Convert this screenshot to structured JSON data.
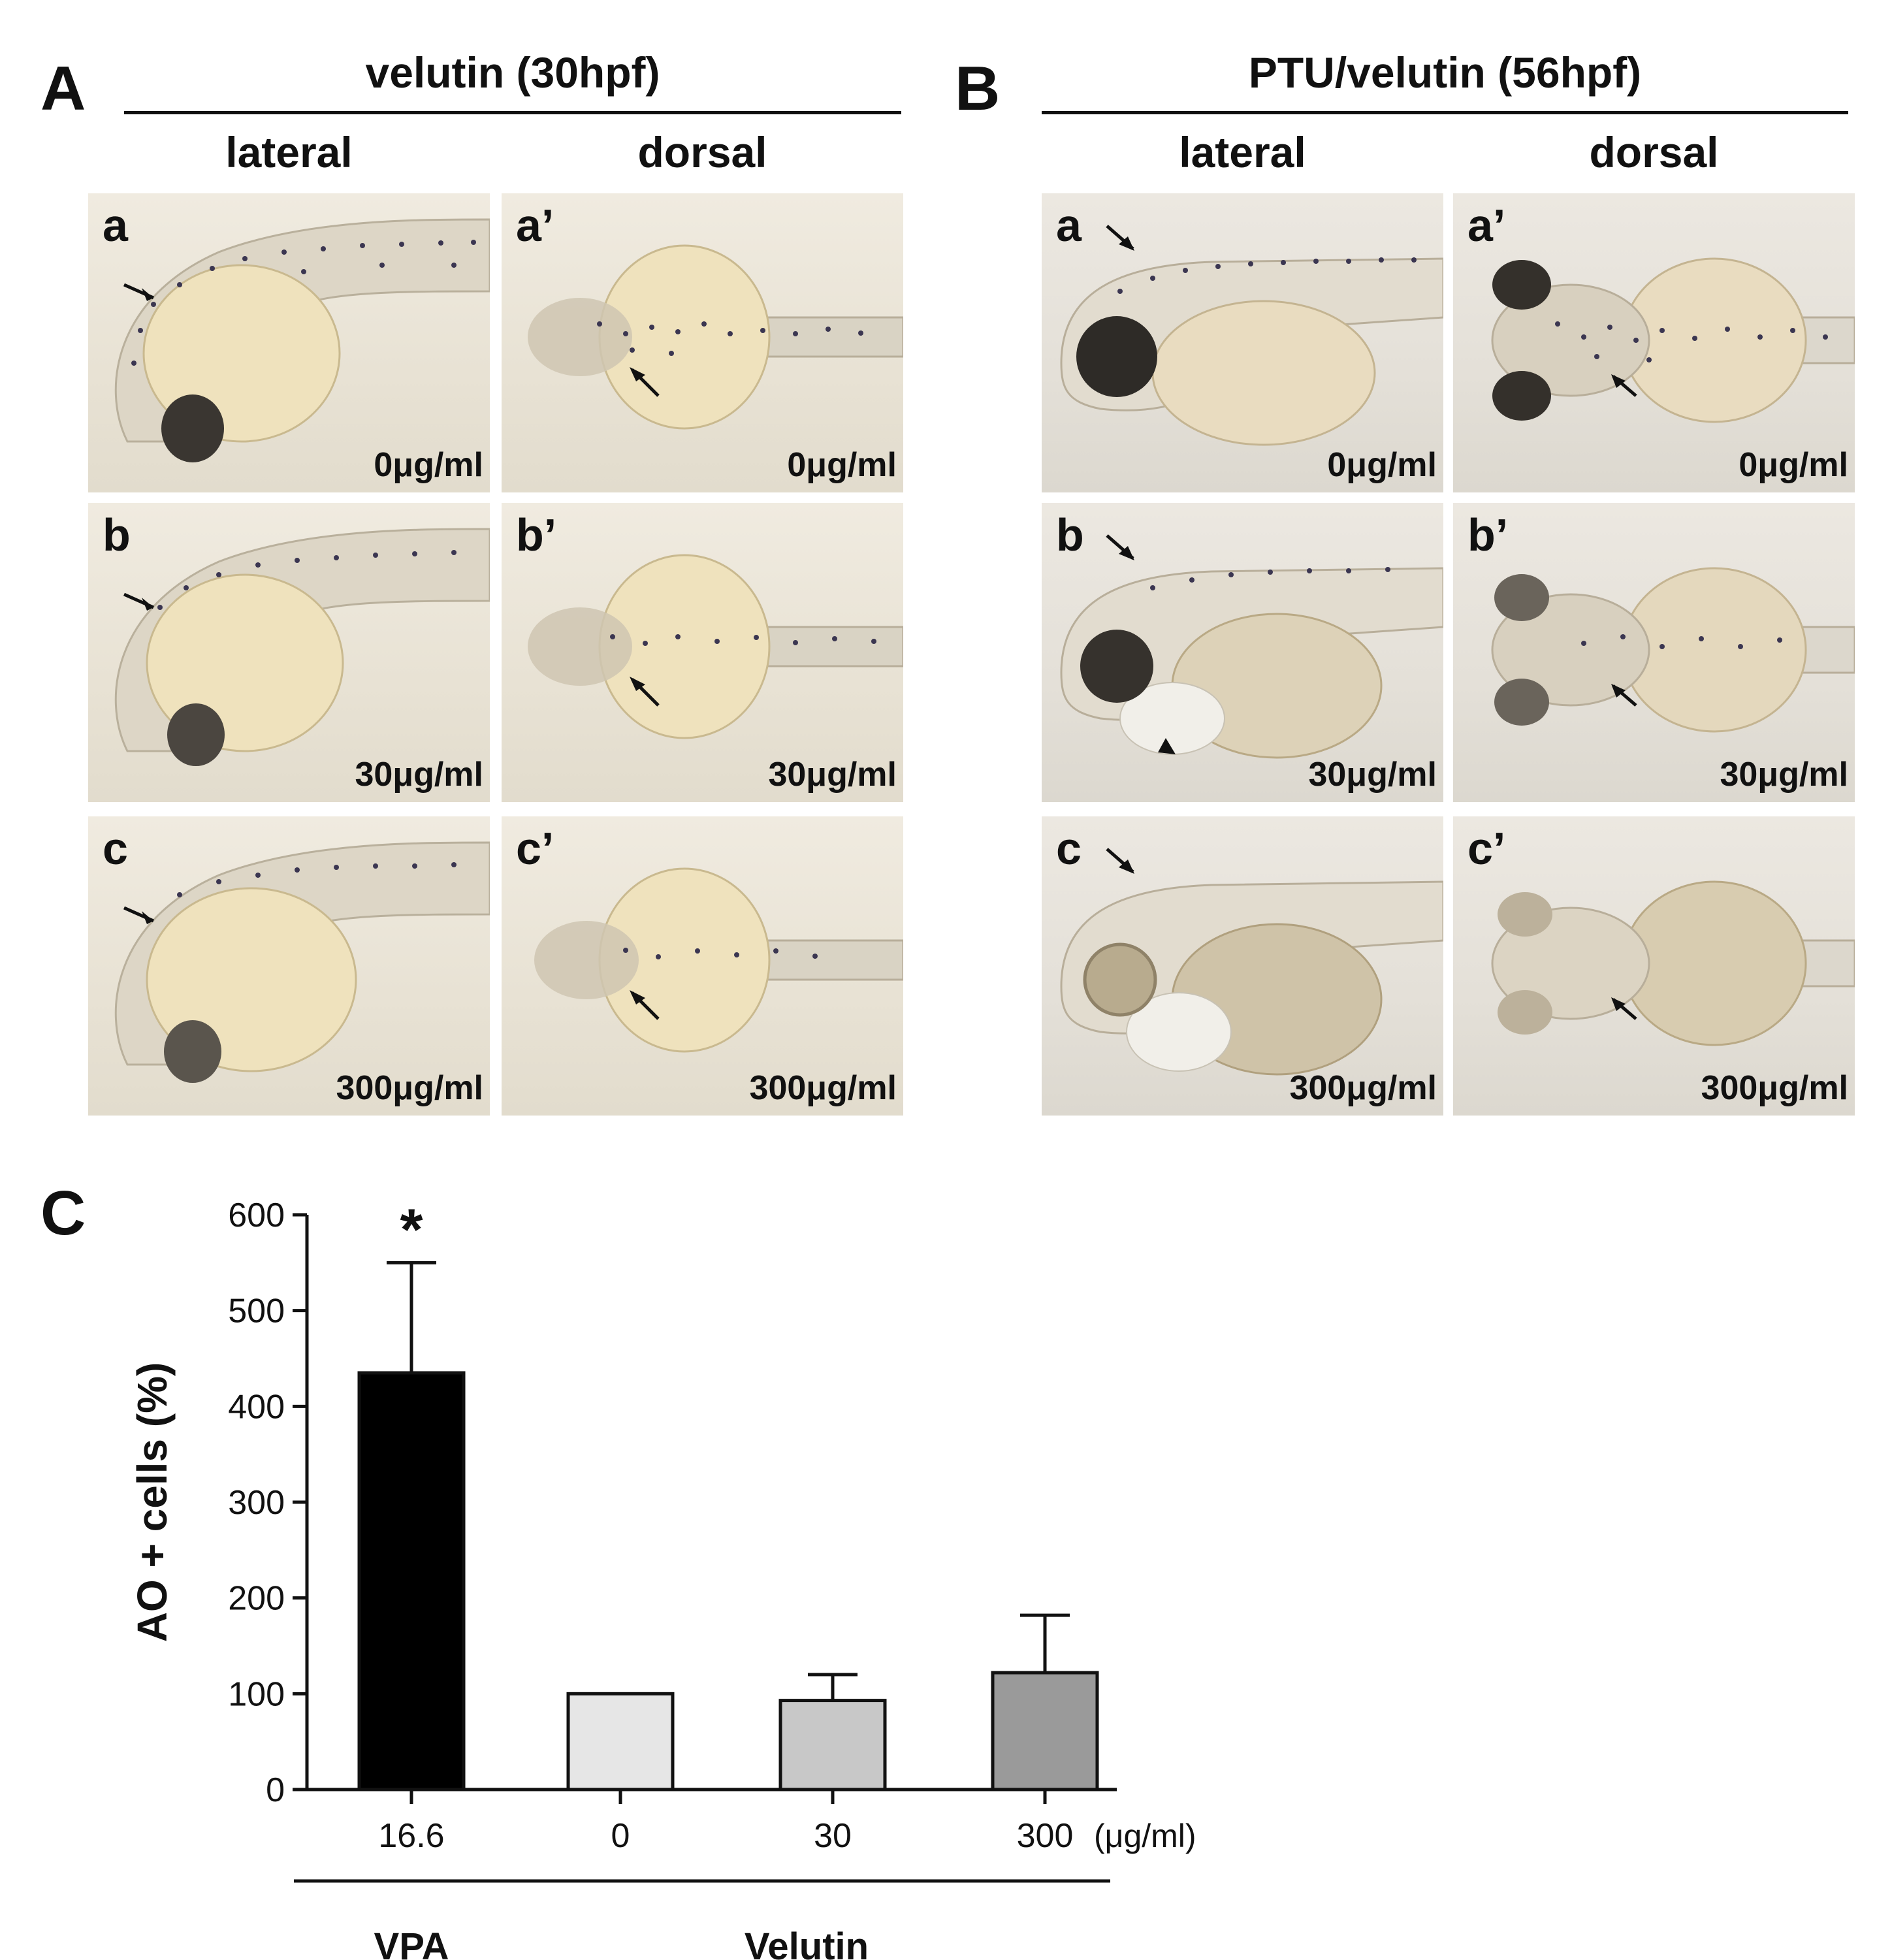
{
  "panels": {
    "A": {
      "letter": "A",
      "title": "velutin (30hpf)",
      "views": [
        "lateral",
        "dorsal"
      ],
      "images": [
        {
          "letter": "a",
          "conc": "0μg/ml"
        },
        {
          "letter": "a’",
          "conc": "0μg/ml"
        },
        {
          "letter": "b",
          "conc": "30μg/ml"
        },
        {
          "letter": "b’",
          "conc": "30μg/ml"
        },
        {
          "letter": "c",
          "conc": "300μg/ml"
        },
        {
          "letter": "c’",
          "conc": "300μg/ml"
        }
      ]
    },
    "B": {
      "letter": "B",
      "title": "PTU/velutin (56hpf)",
      "views": [
        "lateral",
        "dorsal"
      ],
      "images": [
        {
          "letter": "a",
          "conc": "0μg/ml"
        },
        {
          "letter": "a’",
          "conc": "0μg/ml"
        },
        {
          "letter": "b",
          "conc": "30μg/ml"
        },
        {
          "letter": "b’",
          "conc": "30μg/ml"
        },
        {
          "letter": "c",
          "conc": "300μg/ml"
        },
        {
          "letter": "c’",
          "conc": "300μg/ml"
        }
      ]
    },
    "C": {
      "letter": "C"
    }
  },
  "chart_data": {
    "type": "bar",
    "ylabel": "AO + cells (%)",
    "ylim": [
      0,
      600
    ],
    "yticks": [
      0,
      100,
      200,
      300,
      400,
      500,
      600
    ],
    "unit_label": "(μg/ml)",
    "categories": [
      "16.6",
      "0",
      "30",
      "300"
    ],
    "values": [
      435,
      100,
      93,
      122
    ],
    "errors": [
      115,
      0,
      27,
      60
    ],
    "bar_colors": [
      "#000000",
      "#e6e6e6",
      "#c8c8c8",
      "#9a9a9a"
    ],
    "annotations": [
      {
        "category": "16.6",
        "text": "*"
      }
    ],
    "groups": [
      {
        "label": "VPA",
        "categories": [
          "16.6"
        ]
      },
      {
        "label": "Velutin",
        "categories": [
          "0",
          "30",
          "300"
        ]
      }
    ]
  }
}
